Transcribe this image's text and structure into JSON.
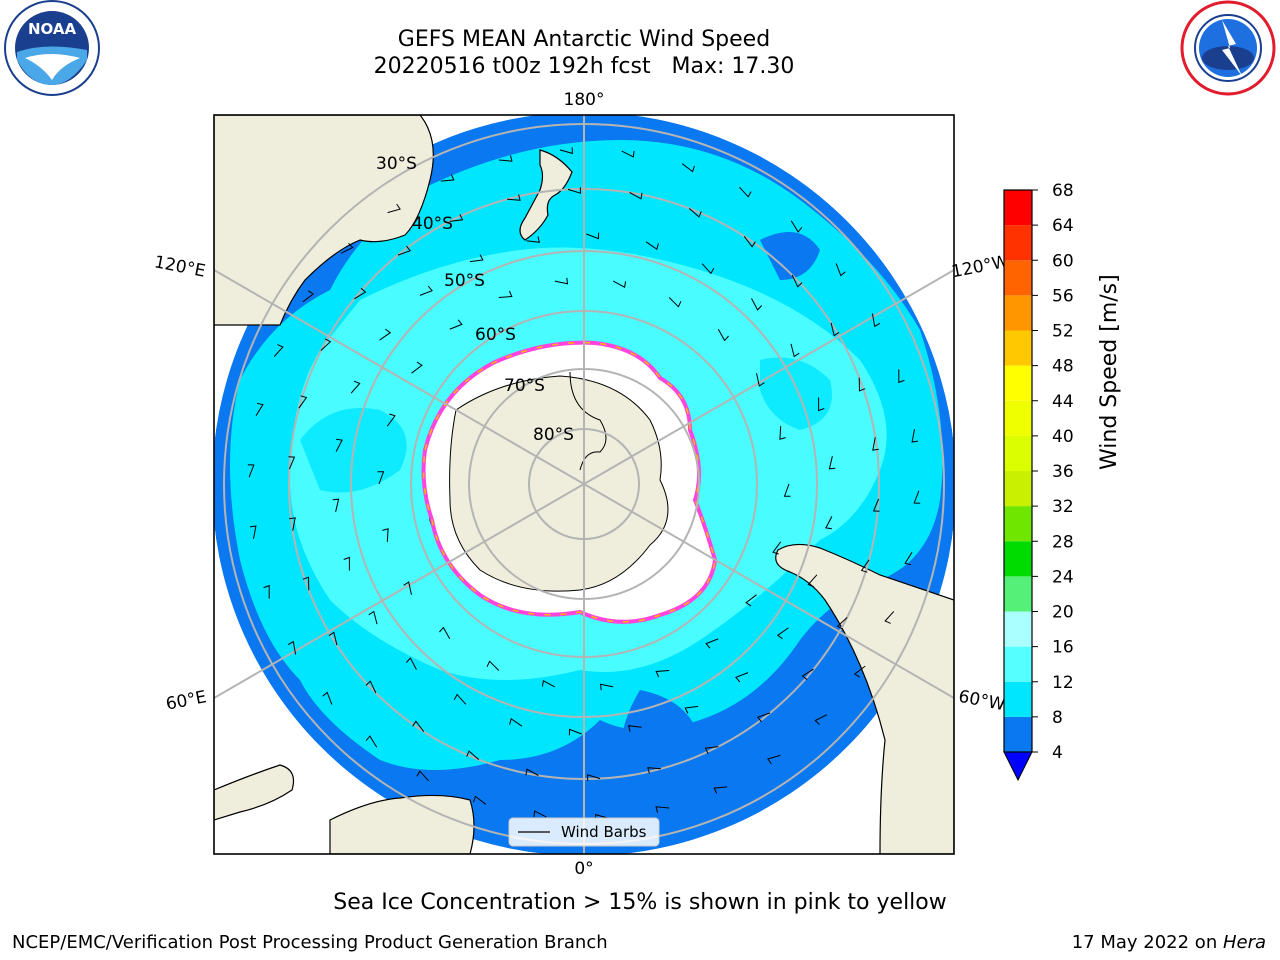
{
  "title": {
    "line1": "GEFS MEAN Antarctic Wind Speed",
    "line2": "20220516 t00z 192h fcst   Max: 17.30"
  },
  "caption": "Sea Ice Concentration > 15% is shown in pink to yellow",
  "footer": {
    "left": "NCEP/EMC/Verification Post Processing Product Generation Branch",
    "right_date": "17 May 2022 on ",
    "right_host": "Hera"
  },
  "logos": {
    "noaa": {
      "icon": "noaa-logo",
      "text": "NOAA"
    },
    "nws": {
      "icon": "nws-logo"
    }
  },
  "map": {
    "projection": "south-polar-stereographic",
    "latitude_labels": [
      "30°S",
      "40°S",
      "50°S",
      "60°S",
      "70°S",
      "80°S"
    ],
    "longitude_labels": {
      "top": "180°",
      "bottom": "0°",
      "upper_left": "120°E",
      "lower_left": "60°E",
      "upper_right": "120°W",
      "lower_right": "60°W"
    },
    "legend": {
      "label": "Wind Barbs"
    },
    "colors": {
      "ocean_low": "#0a78f0",
      "ocean_mid": "#00e6ff",
      "ocean_light": "#55ffff",
      "land": "#efeedc",
      "ice": "#ffffff",
      "ice_edge": [
        "#ff44dd",
        "#ffb400",
        "#ffff00"
      ],
      "grid": "#b4b4b4"
    }
  },
  "colorbar": {
    "title": "Wind Speed [m/s]",
    "ticks": [
      "4",
      "8",
      "12",
      "16",
      "20",
      "24",
      "28",
      "32",
      "36",
      "40",
      "44",
      "48",
      "52",
      "56",
      "60",
      "64",
      "68"
    ],
    "extend": "min",
    "under_color": "#0000ff",
    "bins": [
      {
        "from": 4,
        "to": 8,
        "color": "#0a78f0"
      },
      {
        "from": 8,
        "to": 12,
        "color": "#00e6ff"
      },
      {
        "from": 12,
        "to": 16,
        "color": "#55ffff"
      },
      {
        "from": 16,
        "to": 20,
        "color": "#aaffff"
      },
      {
        "from": 20,
        "to": 24,
        "color": "#55f078"
      },
      {
        "from": 24,
        "to": 28,
        "color": "#00dc00"
      },
      {
        "from": 28,
        "to": 32,
        "color": "#6ee600"
      },
      {
        "from": 32,
        "to": 36,
        "color": "#c8f000"
      },
      {
        "from": 36,
        "to": 40,
        "color": "#dcff00"
      },
      {
        "from": 40,
        "to": 44,
        "color": "#f0ff00"
      },
      {
        "from": 44,
        "to": 48,
        "color": "#ffff00"
      },
      {
        "from": 48,
        "to": 52,
        "color": "#ffc800"
      },
      {
        "from": 52,
        "to": 56,
        "color": "#ff9600"
      },
      {
        "from": 56,
        "to": 60,
        "color": "#ff6400"
      },
      {
        "from": 60,
        "to": 64,
        "color": "#ff3200"
      },
      {
        "from": 64,
        "to": 68,
        "color": "#ff0000"
      }
    ]
  }
}
